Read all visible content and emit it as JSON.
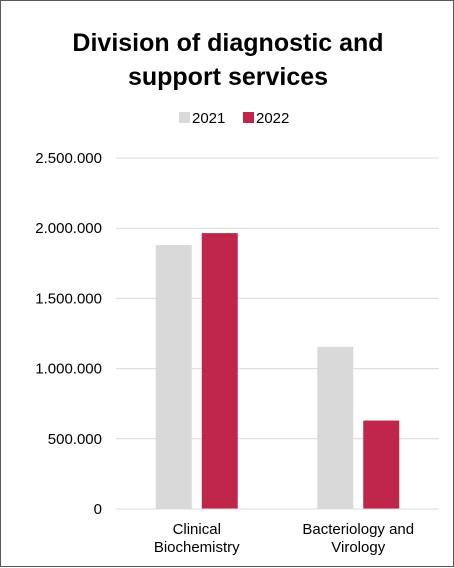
{
  "chart_data": {
    "type": "bar",
    "title": [
      "Division of diagnostic and",
      "support services"
    ],
    "categories": [
      [
        "Clinical",
        "Biochemistry"
      ],
      [
        "Bacteriology and",
        "Virology"
      ]
    ],
    "series": [
      {
        "name": "2021",
        "color": "#d9d9d9",
        "values": [
          1880000,
          1155000
        ]
      },
      {
        "name": "2022",
        "color": "#c0264a",
        "values": [
          1965000,
          630000
        ]
      }
    ],
    "yticks": [
      "0",
      "500.000",
      "1.000.000",
      "1.500.000",
      "2.000.000",
      "2.500.000"
    ],
    "ylim": [
      0,
      2500000
    ],
    "grid": true,
    "legend_position": "top"
  }
}
